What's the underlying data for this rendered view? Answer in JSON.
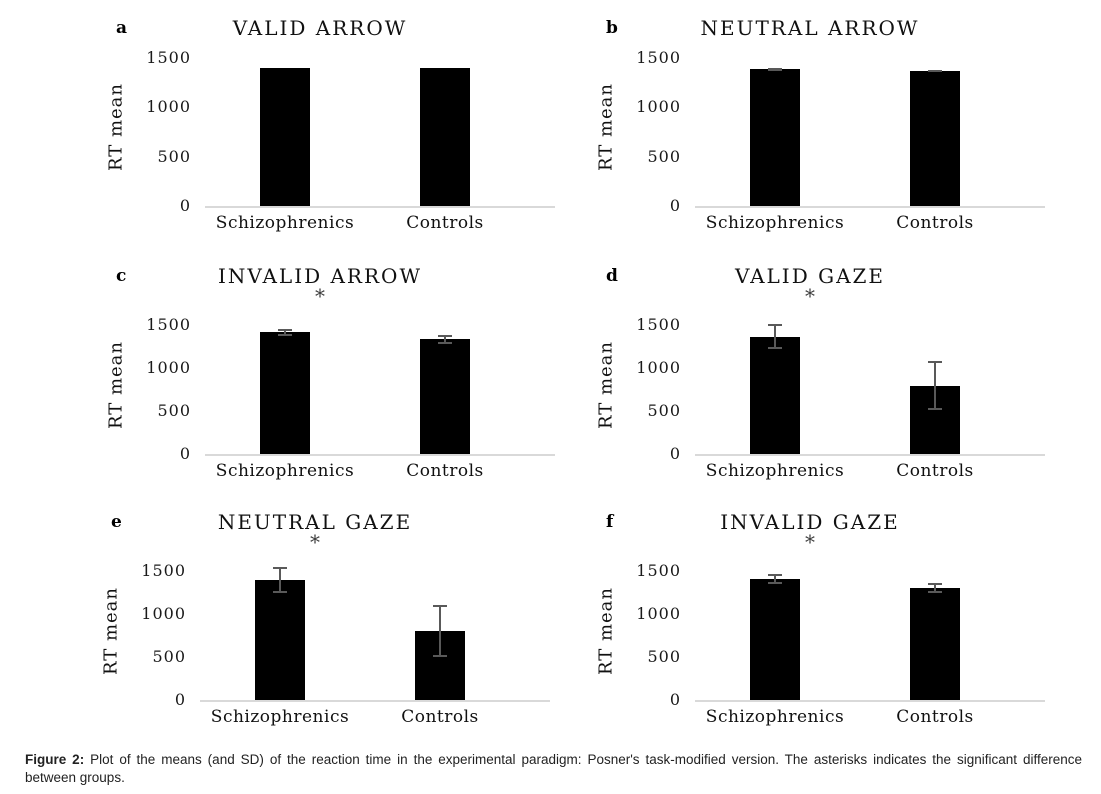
{
  "figure": {
    "caption_label": "Figure 2:",
    "caption_text": " Plot of the means (and SD) of the reaction time in the experimental paradigm: Posner's task-modified version. The asterisks indicates the significant difference between groups."
  },
  "axis": {
    "ylabel": "RT mean",
    "yticks": [
      0,
      500,
      1000,
      1500
    ],
    "ylim": [
      0,
      1600
    ],
    "categories": [
      "Schizophrenics",
      "Controls"
    ],
    "significance_marker": "*"
  },
  "colors": {
    "bar": "#000000",
    "error_bar": "#595959",
    "axis_line": "#d9d9d9",
    "text": "#1a1a1a"
  },
  "chart_data": [
    {
      "panel_letter": "a",
      "type": "bar",
      "title": "VALID ARROW",
      "significant": false,
      "categories": [
        "Schizophrenics",
        "Controls"
      ],
      "values": [
        1400,
        1400
      ],
      "sd": [
        0,
        0
      ],
      "ylabel": "RT mean",
      "ylim": [
        0,
        1600
      ]
    },
    {
      "panel_letter": "b",
      "type": "bar",
      "title": "NEUTRAL ARROW",
      "significant": false,
      "categories": [
        "Schizophrenics",
        "Controls"
      ],
      "values": [
        1385,
        1370
      ],
      "sd": [
        15,
        10
      ],
      "ylabel": "RT mean",
      "ylim": [
        0,
        1600
      ]
    },
    {
      "panel_letter": "c",
      "type": "bar",
      "title": "INVALID ARROW",
      "significant": true,
      "categories": [
        "Schizophrenics",
        "Controls"
      ],
      "values": [
        1410,
        1330
      ],
      "sd": [
        45,
        55
      ],
      "ylabel": "RT mean",
      "ylim": [
        0,
        1600
      ]
    },
    {
      "panel_letter": "d",
      "type": "bar",
      "title": "VALID GAZE",
      "significant": true,
      "categories": [
        "Schizophrenics",
        "Controls"
      ],
      "values": [
        1360,
        790
      ],
      "sd": [
        145,
        285
      ],
      "ylabel": "RT mean",
      "ylim": [
        0,
        1600
      ]
    },
    {
      "panel_letter": "e",
      "type": "bar",
      "title": "NEUTRAL GAZE",
      "significant": true,
      "categories": [
        "Schizophrenics",
        "Controls"
      ],
      "values": [
        1390,
        800
      ],
      "sd": [
        150,
        300
      ],
      "ylabel": "RT mean",
      "ylim": [
        0,
        1600
      ]
    },
    {
      "panel_letter": "f",
      "type": "bar",
      "title": "INVALID GAZE",
      "significant": true,
      "categories": [
        "Schizophrenics",
        "Controls"
      ],
      "values": [
        1405,
        1295
      ],
      "sd": [
        55,
        60
      ],
      "ylabel": "RT mean",
      "ylim": [
        0,
        1600
      ]
    }
  ]
}
